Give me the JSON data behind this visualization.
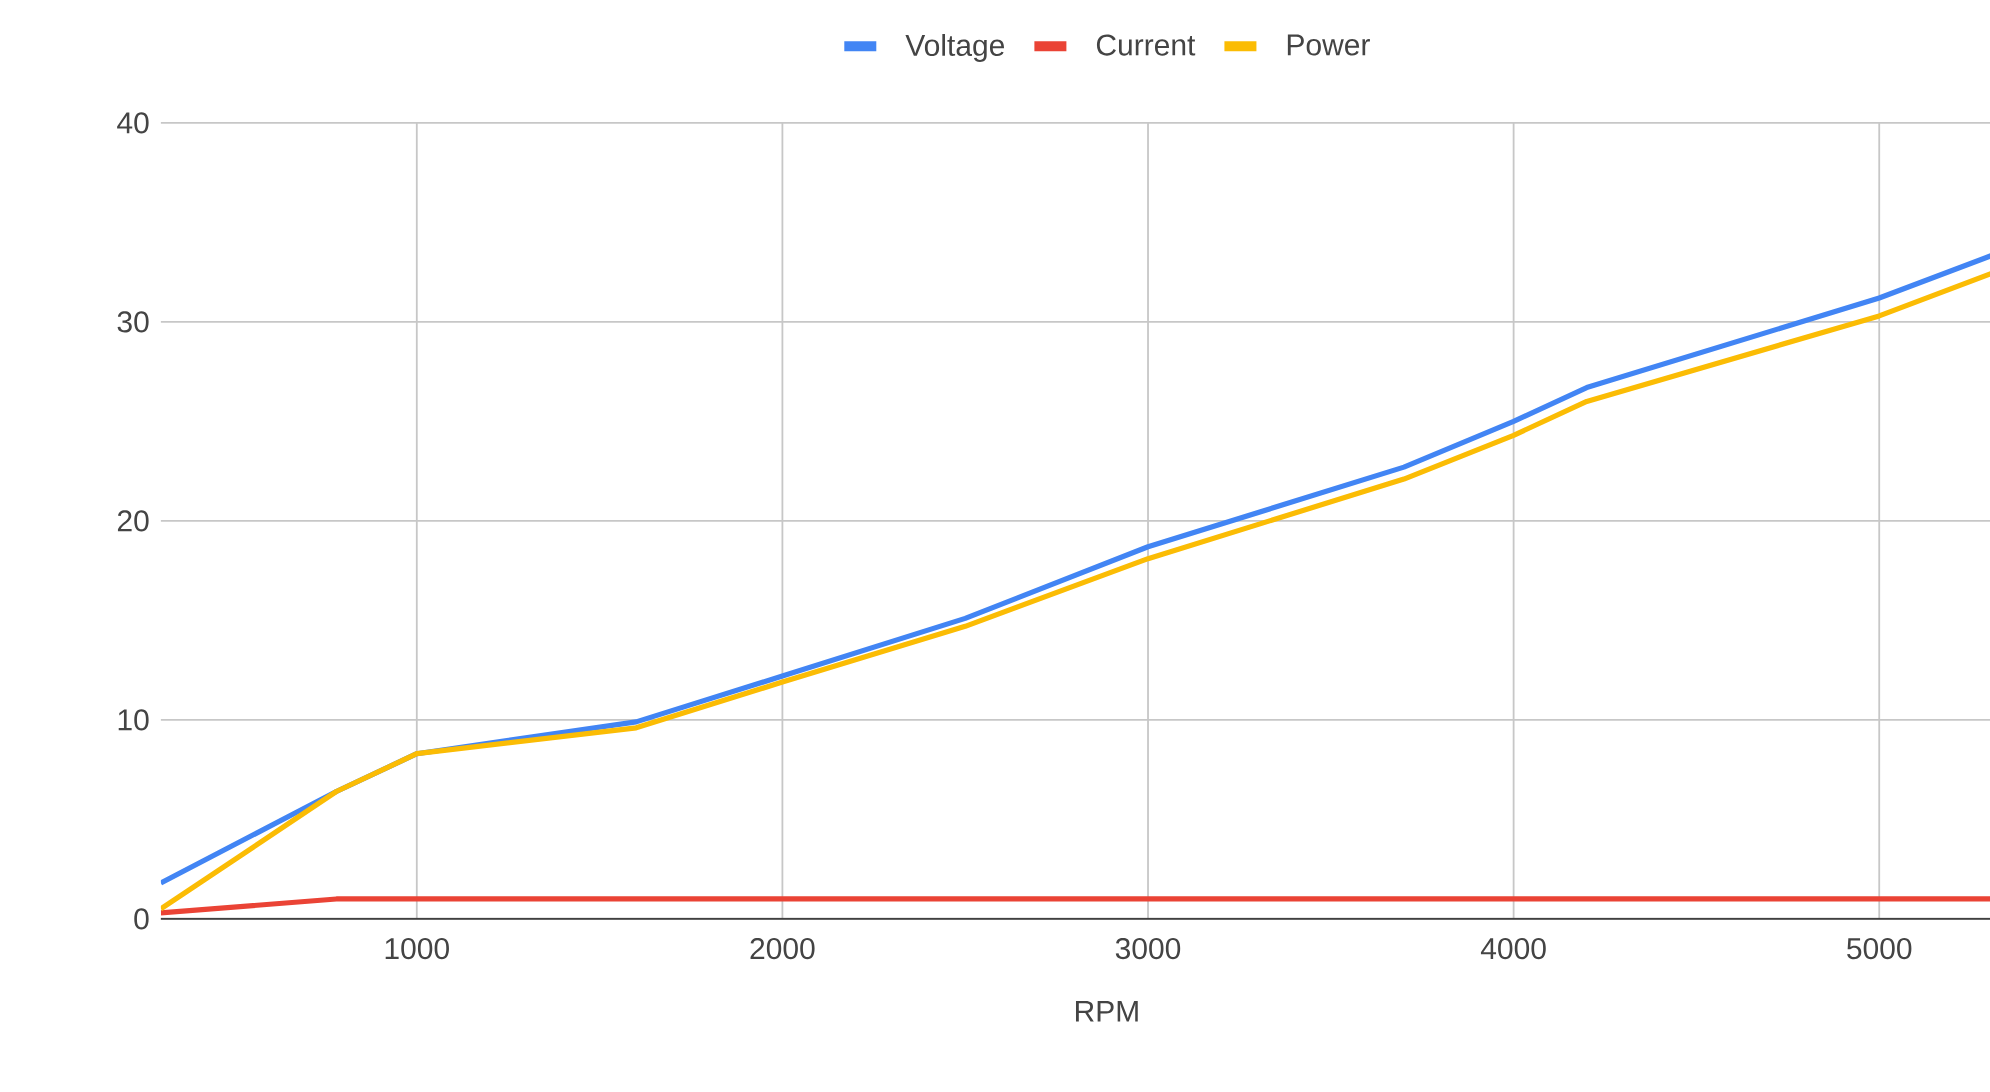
{
  "chart_data": {
    "type": "line",
    "xlabel": "RPM",
    "xlim": [
      300,
      5475
    ],
    "ylim": [
      0,
      40
    ],
    "xticks": [
      1000,
      2000,
      3000,
      4000,
      5000
    ],
    "yticks": [
      0,
      10,
      20,
      30,
      40
    ],
    "grid": true,
    "legend": "top",
    "marker": "none",
    "line_style": "solid",
    "series": [
      {
        "name": "Voltage",
        "color": "#4285f4",
        "x": [
          300,
          780,
          1000,
          1600,
          2000,
          2500,
          3000,
          3700,
          4000,
          4200,
          5000,
          5475
        ],
        "values": [
          1.8,
          6.4,
          8.3,
          9.9,
          12.2,
          15.1,
          18.7,
          22.7,
          25.0,
          26.7,
          31.2,
          34.5
        ]
      },
      {
        "name": "Current",
        "color": "#ea4335",
        "x": [
          300,
          780,
          1000,
          1600,
          2000,
          2500,
          3000,
          3700,
          4000,
          4200,
          5000,
          5475
        ],
        "values": [
          0.3,
          1.0,
          1.0,
          1.0,
          1.0,
          1.0,
          1.0,
          1.0,
          1.0,
          1.0,
          1.0,
          1.0
        ]
      },
      {
        "name": "Power",
        "color": "#fbbc04",
        "x": [
          300,
          780,
          1000,
          1600,
          2000,
          2500,
          3000,
          3700,
          4000,
          4200,
          5000,
          5475
        ],
        "values": [
          0.5,
          6.4,
          8.3,
          9.6,
          11.9,
          14.7,
          18.1,
          22.1,
          24.3,
          26.0,
          30.3,
          33.6
        ]
      }
    ]
  }
}
